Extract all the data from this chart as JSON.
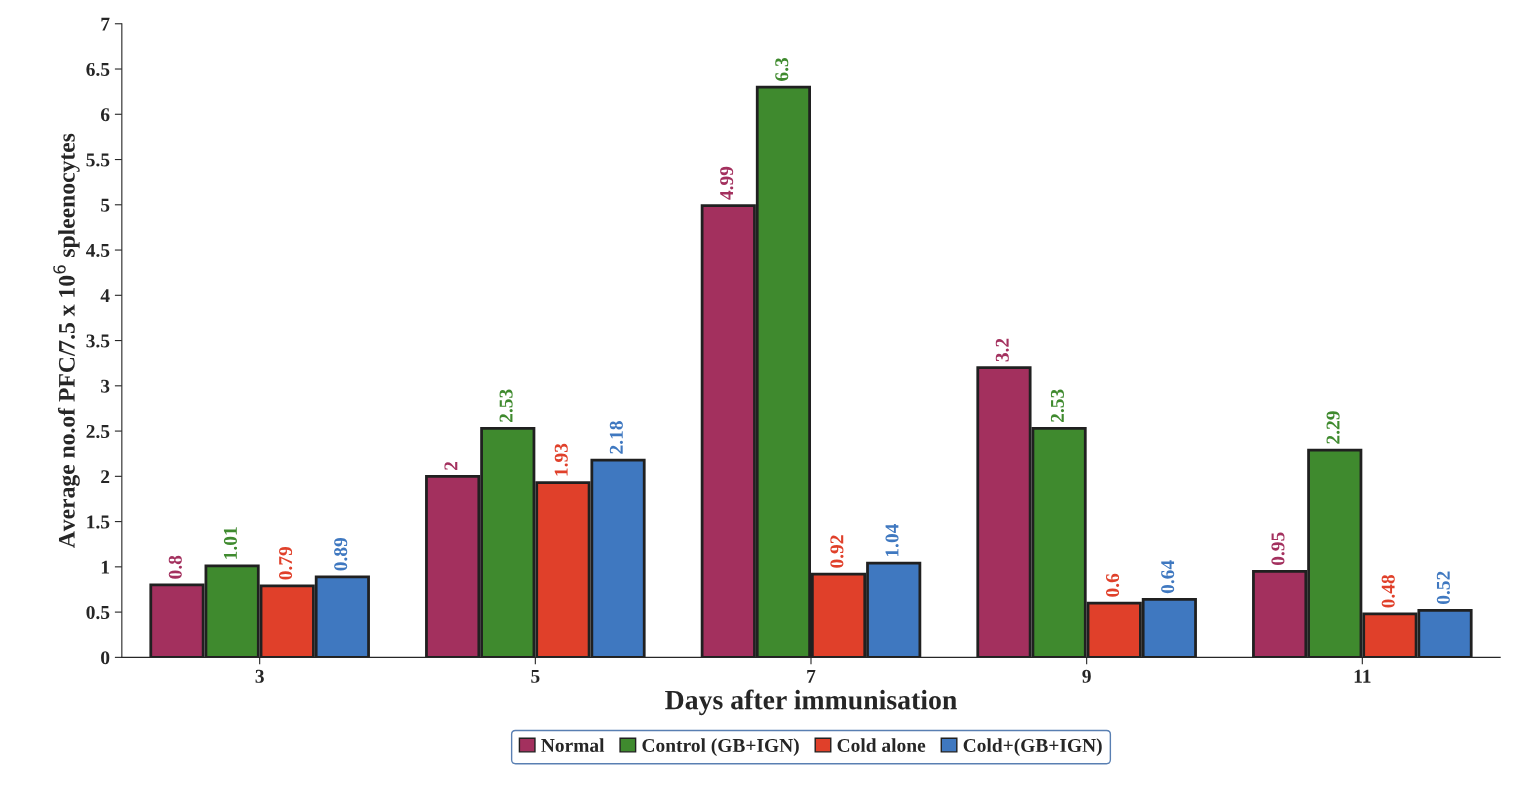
{
  "chart_data": {
    "type": "bar",
    "xlabel": "Days after immunisation",
    "ylabel": "Average no.of PFC/7.5 x 10$^{6}$ spleenocytes",
    "categories": [
      "3",
      "5",
      "7",
      "9",
      "11"
    ],
    "series": [
      {
        "name": "Normal",
        "color": "#a3305e",
        "values": [
          0.8,
          2,
          4.99,
          3.2,
          0.95
        ]
      },
      {
        "name": "Control (GB+IGN)",
        "color": "#3f8a2e",
        "values": [
          1.01,
          2.53,
          6.3,
          2.53,
          2.29
        ]
      },
      {
        "name": "Cold alone",
        "color": "#e0402a",
        "values": [
          0.79,
          1.93,
          0.92,
          0.6,
          0.48
        ]
      },
      {
        "name": "Cold+(GB+IGN)",
        "color": "#3f78c0",
        "values": [
          0.89,
          2.18,
          1.04,
          0.64,
          0.52
        ]
      }
    ],
    "ylim": [
      0,
      7
    ],
    "yticks": [
      0,
      0.5,
      1,
      1.5,
      2,
      2.5,
      3,
      3.5,
      4,
      4.5,
      5,
      5.5,
      6,
      6.5,
      7
    ],
    "data_labels": true,
    "grid": false,
    "legend": "bottom"
  }
}
